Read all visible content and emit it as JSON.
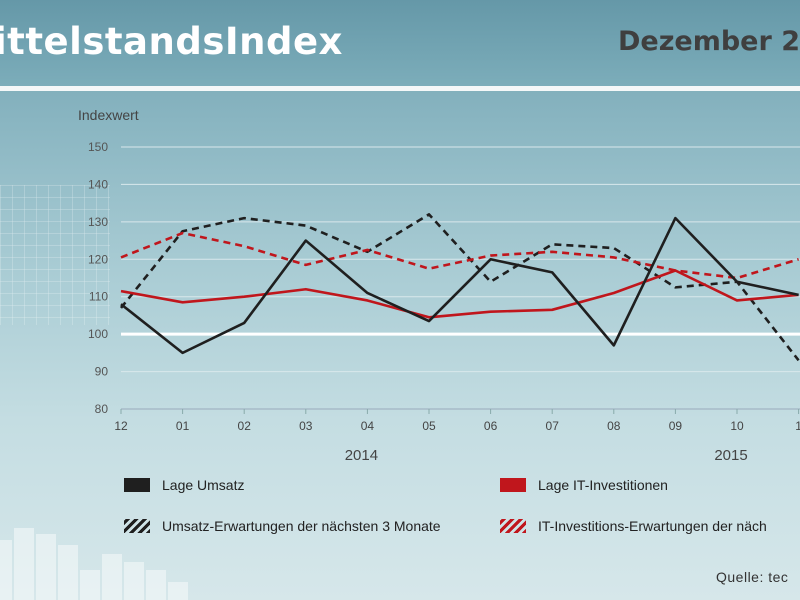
{
  "header": {
    "title": "ittelstandsIndex",
    "date": "Dezember 2"
  },
  "source": "Quelle:  tec",
  "colors": {
    "black": "#1f1f1f",
    "red": "#c0161c",
    "baseline": "#ffffff",
    "grid": "#d9e8ec"
  },
  "chart_data": {
    "type": "line",
    "title": "",
    "xlabel": "",
    "ylabel": "Indexwert",
    "ylim": [
      80,
      150
    ],
    "yticks": [
      80,
      90,
      100,
      110,
      120,
      130,
      140,
      150
    ],
    "categories": [
      "12",
      "01",
      "02",
      "03",
      "04",
      "05",
      "06",
      "07",
      "08",
      "09",
      "10",
      "1"
    ],
    "year_labels": [
      {
        "label": "2014",
        "category": "04"
      },
      {
        "label": "2015",
        "category": "10"
      }
    ],
    "reference_line": 100,
    "grid": true,
    "legend_position": "bottom",
    "series": [
      {
        "name": "Lage Umsatz",
        "color": "#1f1f1f",
        "style": "solid",
        "values": [
          108,
          95,
          103,
          125,
          111,
          103.5,
          120,
          116.5,
          97,
          131,
          114,
          110.5
        ]
      },
      {
        "name": "Lage IT-Investitionen",
        "color": "#c0161c",
        "style": "solid",
        "values": [
          111.5,
          108.5,
          110,
          112,
          109,
          104.5,
          106,
          106.5,
          111,
          117,
          109,
          110.5
        ]
      },
      {
        "name": "Umsatz-Erwartungen  der nächsten 3 Monate",
        "color": "#1f1f1f",
        "style": "dashed",
        "values": [
          107,
          127.5,
          131,
          129,
          122,
          132,
          114,
          124,
          123,
          112.5,
          114,
          93
        ]
      },
      {
        "name": "IT-Investitions-Erwartungen der näch",
        "color": "#c0161c",
        "style": "dashed",
        "values": [
          120.5,
          127,
          123.5,
          118.5,
          122.5,
          117.5,
          121,
          122,
          120.5,
          117,
          115,
          120
        ]
      }
    ]
  }
}
